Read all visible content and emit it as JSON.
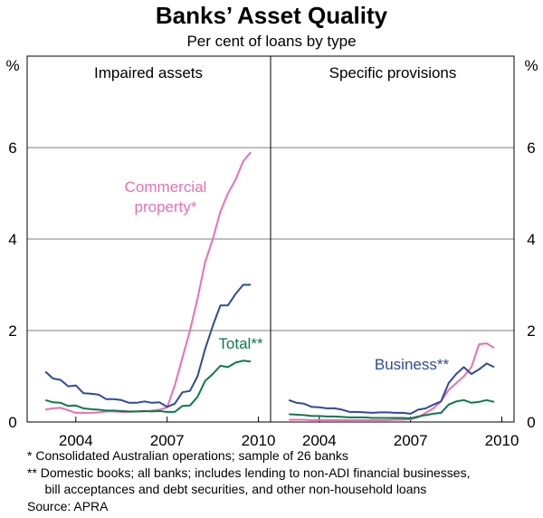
{
  "title": "Banks’ Asset Quality",
  "subtitle": "Per cent of loans by type",
  "y_unit_label": "%",
  "notes": [
    "*   Consolidated Australian operations; sample of 26 banks",
    "** Domestic books; all banks; includes lending to non-ADI financial businesses,",
    "     bill acceptances and debt securities, and other non-household loans",
    "Source: APRA"
  ],
  "colors": {
    "commercial": "#ec6fb0",
    "business": "#2e4a9a",
    "total": "#0b7a4a",
    "axis": "#000000"
  },
  "chart_data": [
    {
      "type": "line",
      "panel_title": "Impaired assets",
      "xlim": [
        2002.9,
        2010.9
      ],
      "ylim": [
        0,
        8
      ],
      "yticks": [
        0,
        2,
        4,
        6
      ],
      "xtick_labels": [
        "2004",
        "2007",
        "2010"
      ],
      "xtick_values": [
        2004.5,
        2007.5,
        2010.5
      ],
      "series": [
        {
          "name": "Commercial property*",
          "label_lines": [
            "Commercial",
            "property*"
          ],
          "color_key": "commercial",
          "x": [
            2003.5,
            2003.75,
            2004.0,
            2004.25,
            2004.5,
            2004.75,
            2005.0,
            2005.25,
            2005.5,
            2005.75,
            2006.0,
            2006.25,
            2006.5,
            2006.75,
            2007.0,
            2007.25,
            2007.5,
            2007.75,
            2008.0,
            2008.25,
            2008.5,
            2008.75,
            2009.0,
            2009.25,
            2009.5,
            2009.75,
            2010.0,
            2010.25
          ],
          "y": [
            0.27,
            0.3,
            0.31,
            0.26,
            0.2,
            0.2,
            0.2,
            0.21,
            0.23,
            0.23,
            0.22,
            0.22,
            0.23,
            0.23,
            0.25,
            0.27,
            0.32,
            0.8,
            1.4,
            2.0,
            2.7,
            3.5,
            4.0,
            4.6,
            5.0,
            5.3,
            5.7,
            5.9
          ]
        },
        {
          "name": "Business**",
          "label_lines": [],
          "color_key": "business",
          "x": [
            2003.5,
            2003.75,
            2004.0,
            2004.25,
            2004.5,
            2004.75,
            2005.0,
            2005.25,
            2005.5,
            2005.75,
            2006.0,
            2006.25,
            2006.5,
            2006.75,
            2007.0,
            2007.25,
            2007.5,
            2007.75,
            2008.0,
            2008.25,
            2008.5,
            2008.75,
            2009.0,
            2009.25,
            2009.5,
            2009.75,
            2010.0,
            2010.25
          ],
          "y": [
            1.1,
            0.95,
            0.92,
            0.78,
            0.8,
            0.63,
            0.62,
            0.6,
            0.5,
            0.5,
            0.48,
            0.42,
            0.42,
            0.45,
            0.42,
            0.43,
            0.33,
            0.4,
            0.65,
            0.68,
            1.0,
            1.6,
            2.1,
            2.55,
            2.55,
            2.8,
            3.0,
            3.0
          ]
        },
        {
          "name": "Total**",
          "label_lines": [
            "Total**"
          ],
          "color_key": "total",
          "x": [
            2003.5,
            2003.75,
            2004.0,
            2004.25,
            2004.5,
            2004.75,
            2005.0,
            2005.25,
            2005.5,
            2005.75,
            2006.0,
            2006.25,
            2006.5,
            2006.75,
            2007.0,
            2007.25,
            2007.5,
            2007.75,
            2008.0,
            2008.25,
            2008.5,
            2008.75,
            2009.0,
            2009.25,
            2009.5,
            2009.75,
            2010.0,
            2010.25
          ],
          "y": [
            0.48,
            0.43,
            0.42,
            0.35,
            0.36,
            0.3,
            0.28,
            0.27,
            0.25,
            0.25,
            0.24,
            0.23,
            0.23,
            0.24,
            0.23,
            0.24,
            0.22,
            0.22,
            0.35,
            0.36,
            0.55,
            0.9,
            1.05,
            1.23,
            1.2,
            1.3,
            1.34,
            1.32
          ]
        }
      ]
    },
    {
      "type": "line",
      "panel_title": "Specific provisions",
      "xlim": [
        2002.9,
        2010.9
      ],
      "ylim": [
        0,
        8
      ],
      "yticks": [
        0,
        2,
        4,
        6
      ],
      "xtick_labels": [
        "2004",
        "2007",
        "2010"
      ],
      "xtick_values": [
        2004.5,
        2007.5,
        2010.5
      ],
      "series": [
        {
          "name": "Commercial property*",
          "label_lines": [],
          "color_key": "commercial",
          "x": [
            2003.5,
            2003.75,
            2004.0,
            2004.25,
            2004.5,
            2004.75,
            2005.0,
            2005.25,
            2005.5,
            2005.75,
            2006.0,
            2006.25,
            2006.5,
            2006.75,
            2007.0,
            2007.25,
            2007.5,
            2007.75,
            2008.0,
            2008.25,
            2008.5,
            2008.75,
            2009.0,
            2009.25,
            2009.5,
            2009.75,
            2010.0,
            2010.25
          ],
          "y": [
            0.05,
            0.05,
            0.05,
            0.04,
            0.04,
            0.04,
            0.04,
            0.04,
            0.04,
            0.04,
            0.04,
            0.04,
            0.04,
            0.04,
            0.05,
            0.05,
            0.06,
            0.1,
            0.2,
            0.3,
            0.45,
            0.7,
            0.85,
            1.0,
            1.2,
            1.7,
            1.72,
            1.62
          ]
        },
        {
          "name": "Business**",
          "label_lines": [
            "Business**"
          ],
          "color_key": "business",
          "x": [
            2003.5,
            2003.75,
            2004.0,
            2004.25,
            2004.5,
            2004.75,
            2005.0,
            2005.25,
            2005.5,
            2005.75,
            2006.0,
            2006.25,
            2006.5,
            2006.75,
            2007.0,
            2007.25,
            2007.5,
            2007.75,
            2008.0,
            2008.25,
            2008.5,
            2008.75,
            2009.0,
            2009.25,
            2009.5,
            2009.75,
            2010.0,
            2010.25
          ],
          "y": [
            0.48,
            0.42,
            0.4,
            0.33,
            0.32,
            0.3,
            0.3,
            0.27,
            0.22,
            0.22,
            0.21,
            0.2,
            0.21,
            0.21,
            0.2,
            0.2,
            0.18,
            0.27,
            0.3,
            0.38,
            0.45,
            0.85,
            1.05,
            1.2,
            1.05,
            1.15,
            1.28,
            1.2
          ]
        },
        {
          "name": "Total**",
          "label_lines": [],
          "color_key": "total",
          "x": [
            2003.5,
            2003.75,
            2004.0,
            2004.25,
            2004.5,
            2004.75,
            2005.0,
            2005.25,
            2005.5,
            2005.75,
            2006.0,
            2006.25,
            2006.5,
            2006.75,
            2007.0,
            2007.25,
            2007.5,
            2007.75,
            2008.0,
            2008.25,
            2008.5,
            2008.75,
            2009.0,
            2009.25,
            2009.5,
            2009.75,
            2010.0,
            2010.25
          ],
          "y": [
            0.17,
            0.16,
            0.15,
            0.13,
            0.13,
            0.12,
            0.12,
            0.11,
            0.1,
            0.1,
            0.1,
            0.09,
            0.09,
            0.09,
            0.09,
            0.09,
            0.08,
            0.12,
            0.15,
            0.18,
            0.2,
            0.38,
            0.45,
            0.48,
            0.42,
            0.44,
            0.48,
            0.44
          ]
        }
      ]
    }
  ]
}
